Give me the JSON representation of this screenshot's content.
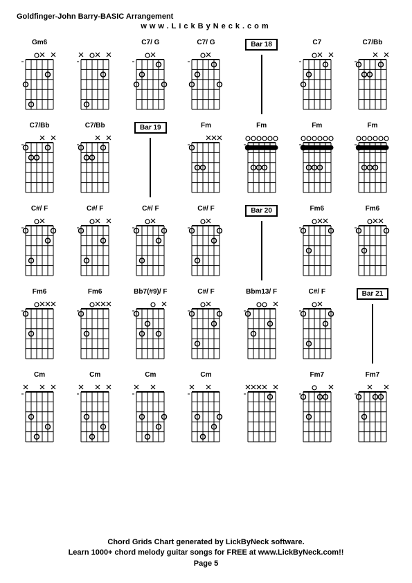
{
  "header": {
    "title": "Goldfinger-John Barry-BASIC Arrangement",
    "subtitle": "www.LickByNeck.com"
  },
  "footer": {
    "line1": "Chord Grids Chart generated by LickByNeck software.",
    "line2": "Learn 1000+ chord melody guitar songs for FREE at www.LickByNeck.com!!",
    "line3": "Page 5"
  },
  "diagram_style": {
    "strings": 6,
    "frets": 5,
    "grid_color": "#000000",
    "line_width": 1,
    "nut_width": 2,
    "dot_radius": 3.5,
    "open_radius": 3,
    "mute_size": 3
  },
  "cells": [
    {
      "type": "chord",
      "label": "Gm6",
      "mutes": [
        3,
        5
      ],
      "opens": [
        2
      ],
      "dots": [
        [
          0,
          3
        ],
        [
          1,
          5
        ],
        [
          4,
          2
        ]
      ],
      "barre": null
    },
    {
      "type": "chord",
      "label": "",
      "mutes": [
        0,
        3,
        5
      ],
      "opens": [
        2
      ],
      "dots": [
        [
          1,
          5
        ],
        [
          4,
          2
        ]
      ],
      "barre": null
    },
    {
      "type": "chord",
      "label": "C7/ G",
      "mutes": [
        3
      ],
      "opens": [
        2
      ],
      "dots": [
        [
          0,
          3
        ],
        [
          1,
          2
        ],
        [
          4,
          1
        ],
        [
          5,
          3
        ]
      ],
      "barre": null
    },
    {
      "type": "chord",
      "label": "C7/ G",
      "mutes": [
        3
      ],
      "opens": [
        2
      ],
      "dots": [
        [
          0,
          3
        ],
        [
          1,
          2
        ],
        [
          4,
          1
        ],
        [
          5,
          3
        ]
      ],
      "barre": null
    },
    {
      "type": "bar",
      "label": "Bar 18"
    },
    {
      "type": "chord",
      "label": "C7",
      "mutes": [
        3,
        5
      ],
      "opens": [
        2
      ],
      "dots": [
        [
          0,
          3
        ],
        [
          1,
          2
        ],
        [
          4,
          1
        ]
      ],
      "barre": null
    },
    {
      "type": "chord",
      "label": "C7/Bb",
      "mutes": [
        3,
        5
      ],
      "opens": [],
      "dots": [
        [
          0,
          1
        ],
        [
          1,
          2
        ],
        [
          2,
          2
        ],
        [
          4,
          1
        ]
      ],
      "barre": null
    },
    {
      "type": "chord",
      "label": "C7/Bb",
      "mutes": [
        3,
        5
      ],
      "opens": [],
      "dots": [
        [
          0,
          1
        ],
        [
          1,
          2
        ],
        [
          2,
          2
        ],
        [
          4,
          1
        ]
      ],
      "barre": null
    },
    {
      "type": "chord",
      "label": "C7/Bb",
      "mutes": [
        3,
        5
      ],
      "opens": [],
      "dots": [
        [
          0,
          1
        ],
        [
          1,
          2
        ],
        [
          2,
          2
        ],
        [
          4,
          1
        ]
      ],
      "barre": null
    },
    {
      "type": "bar",
      "label": "Bar 19"
    },
    {
      "type": "chord",
      "label": "Fm",
      "mutes": [
        3,
        4,
        5
      ],
      "opens": [],
      "dots": [
        [
          0,
          1
        ],
        [
          1,
          3
        ],
        [
          2,
          3
        ]
      ],
      "barre": null
    },
    {
      "type": "chord",
      "label": "Fm",
      "mutes": [],
      "opens": [],
      "dots": [
        [
          0,
          1
        ]
      ],
      "barre": {
        "fret": 1,
        "from": 0,
        "to": 5
      },
      "extra": [
        [
          1,
          3
        ],
        [
          2,
          3
        ],
        [
          3,
          3
        ]
      ]
    },
    {
      "type": "chord",
      "label": "Fm",
      "mutes": [],
      "opens": [],
      "dots": [
        [
          0,
          1
        ]
      ],
      "barre": {
        "fret": 1,
        "from": 0,
        "to": 5
      },
      "extra": [
        [
          1,
          3
        ],
        [
          2,
          3
        ],
        [
          3,
          3
        ]
      ]
    },
    {
      "type": "chord",
      "label": "Fm",
      "mutes": [],
      "opens": [],
      "dots": [
        [
          0,
          1
        ]
      ],
      "barre": {
        "fret": 1,
        "from": 0,
        "to": 5
      },
      "extra": [
        [
          1,
          3
        ],
        [
          2,
          3
        ],
        [
          3,
          3
        ]
      ]
    },
    {
      "type": "chord",
      "label": "C#/ F",
      "mutes": [
        3
      ],
      "opens": [
        2
      ],
      "dots": [
        [
          0,
          1
        ],
        [
          1,
          4
        ],
        [
          4,
          2
        ],
        [
          5,
          1
        ]
      ],
      "barre": null
    },
    {
      "type": "chord",
      "label": "C#/ F",
      "mutes": [
        3,
        5
      ],
      "opens": [
        2
      ],
      "dots": [
        [
          0,
          1
        ],
        [
          1,
          4
        ],
        [
          4,
          2
        ]
      ],
      "barre": null
    },
    {
      "type": "chord",
      "label": "C#/ F",
      "mutes": [
        3
      ],
      "opens": [
        2
      ],
      "dots": [
        [
          0,
          1
        ],
        [
          1,
          4
        ],
        [
          4,
          2
        ],
        [
          5,
          1
        ]
      ],
      "barre": null
    },
    {
      "type": "chord",
      "label": "C#/ F",
      "mutes": [
        3
      ],
      "opens": [
        2
      ],
      "dots": [
        [
          0,
          1
        ],
        [
          1,
          4
        ],
        [
          4,
          2
        ],
        [
          5,
          1
        ]
      ],
      "barre": null
    },
    {
      "type": "bar",
      "label": "Bar 20"
    },
    {
      "type": "chord",
      "label": "Fm6",
      "mutes": [
        3,
        4
      ],
      "opens": [
        2
      ],
      "dots": [
        [
          0,
          1
        ],
        [
          1,
          3
        ],
        [
          5,
          1
        ]
      ],
      "barre": null
    },
    {
      "type": "chord",
      "label": "Fm6",
      "mutes": [
        3,
        4
      ],
      "opens": [
        2
      ],
      "dots": [
        [
          0,
          1
        ],
        [
          1,
          3
        ],
        [
          5,
          1
        ]
      ],
      "barre": null
    },
    {
      "type": "chord",
      "label": "Fm6",
      "mutes": [
        3,
        4,
        5
      ],
      "opens": [
        2
      ],
      "dots": [
        [
          0,
          1
        ],
        [
          1,
          3
        ]
      ],
      "barre": null
    },
    {
      "type": "chord",
      "label": "Fm6",
      "mutes": [
        3,
        4,
        5
      ],
      "opens": [
        2
      ],
      "dots": [
        [
          0,
          1
        ],
        [
          1,
          3
        ]
      ],
      "barre": null
    },
    {
      "type": "chord",
      "label": "Bb7(#9)/ F",
      "mutes": [
        5
      ],
      "opens": [
        3
      ],
      "dots": [
        [
          0,
          1
        ],
        [
          1,
          3
        ],
        [
          2,
          2
        ],
        [
          4,
          3
        ]
      ],
      "barre": null
    },
    {
      "type": "chord",
      "label": "C#/ F",
      "mutes": [
        3
      ],
      "opens": [
        2
      ],
      "dots": [
        [
          0,
          1
        ],
        [
          1,
          4
        ],
        [
          4,
          2
        ],
        [
          5,
          1
        ]
      ],
      "barre": null
    },
    {
      "type": "chord",
      "label": "Bbm13/ F",
      "mutes": [
        5
      ],
      "opens": [
        2,
        3
      ],
      "dots": [
        [
          0,
          1
        ],
        [
          1,
          3
        ],
        [
          4,
          2
        ]
      ],
      "barre": null
    },
    {
      "type": "chord",
      "label": "C#/ F",
      "mutes": [
        3
      ],
      "opens": [
        2
      ],
      "dots": [
        [
          0,
          1
        ],
        [
          1,
          4
        ],
        [
          4,
          2
        ],
        [
          5,
          1
        ]
      ],
      "barre": null
    },
    {
      "type": "bar",
      "label": "Bar 21"
    },
    {
      "type": "chord",
      "label": "Cm",
      "mutes": [
        0,
        3,
        5
      ],
      "opens": [],
      "dots": [
        [
          1,
          3
        ],
        [
          2,
          5
        ],
        [
          4,
          4
        ]
      ],
      "barre": null
    },
    {
      "type": "chord",
      "label": "Cm",
      "mutes": [
        0,
        3,
        5
      ],
      "opens": [],
      "dots": [
        [
          1,
          3
        ],
        [
          2,
          5
        ],
        [
          4,
          4
        ]
      ],
      "barre": null
    },
    {
      "type": "chord",
      "label": "Cm",
      "mutes": [
        0,
        3
      ],
      "opens": [],
      "dots": [
        [
          1,
          3
        ],
        [
          2,
          5
        ],
        [
          4,
          4
        ],
        [
          5,
          3
        ]
      ],
      "barre": null
    },
    {
      "type": "chord",
      "label": "Cm",
      "mutes": [
        0,
        3
      ],
      "opens": [],
      "dots": [
        [
          1,
          3
        ],
        [
          2,
          5
        ],
        [
          4,
          4
        ],
        [
          5,
          3
        ]
      ],
      "barre": null
    },
    {
      "type": "chord",
      "label": "",
      "mutes": [
        0,
        1,
        2,
        3,
        5
      ],
      "opens": [],
      "dots": [
        [
          4,
          1
        ]
      ],
      "barre": null
    },
    {
      "type": "chord",
      "label": "Fm7",
      "mutes": [
        5
      ],
      "opens": [
        2
      ],
      "dots": [
        [
          0,
          1
        ],
        [
          1,
          3
        ],
        [
          3,
          1
        ],
        [
          4,
          1
        ]
      ],
      "barre": null
    },
    {
      "type": "chord",
      "label": "Fm7",
      "mutes": [
        2,
        5
      ],
      "opens": [],
      "dots": [
        [
          0,
          1
        ],
        [
          1,
          3
        ],
        [
          3,
          1
        ],
        [
          4,
          1
        ]
      ],
      "barre": null
    }
  ]
}
